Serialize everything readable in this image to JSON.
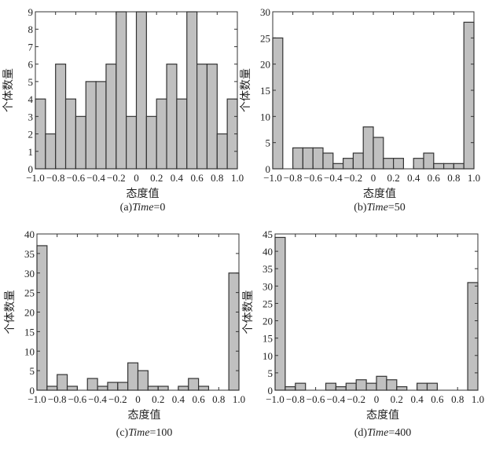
{
  "chart_data": [
    {
      "type": "bar",
      "caption_prefix": "(a)",
      "caption_var": "Time",
      "caption_value": "=0",
      "xlabel": "态度值",
      "ylabel": "个体数量",
      "bin_edges_start": -1.0,
      "bin_width": 0.1,
      "values": [
        4,
        2,
        6,
        4,
        3,
        5,
        5,
        6,
        9,
        3,
        9,
        3,
        4,
        6,
        4,
        9,
        6,
        6,
        2,
        4
      ],
      "xlim": [
        -1.0,
        1.0
      ],
      "ylim": [
        0,
        9
      ],
      "xticks": [
        "-1.0",
        "-0.8",
        "-0.6",
        "-0.4",
        "-0.2",
        "0",
        "0.2",
        "0.4",
        "0.6",
        "0.8",
        "1.0"
      ],
      "yticks": [
        0,
        1,
        2,
        3,
        4,
        5,
        6,
        7,
        8,
        9
      ]
    },
    {
      "type": "bar",
      "caption_prefix": "(b)",
      "caption_var": "Time",
      "caption_value": "=50",
      "xlabel": "态度值",
      "ylabel": "个体数量",
      "bin_edges_start": -1.0,
      "bin_width": 0.1,
      "values": [
        25,
        0,
        4,
        4,
        4,
        3,
        1,
        2,
        3,
        8,
        6,
        2,
        2,
        0,
        2,
        3,
        1,
        1,
        1,
        28
      ],
      "xlim": [
        -1.0,
        1.0
      ],
      "ylim": [
        0,
        30
      ],
      "xticks": [
        "-1.0",
        "-0.8",
        "-0.6",
        "-0.4",
        "-0.2",
        "0",
        "0.2",
        "0.4",
        "0.6",
        "0.8",
        "1.0"
      ],
      "yticks": [
        0,
        5,
        10,
        15,
        20,
        25,
        30
      ]
    },
    {
      "type": "bar",
      "caption_prefix": "(c)",
      "caption_var": "Time",
      "caption_value": "=100",
      "xlabel": "态度值",
      "ylabel": "个体数量",
      "bin_edges_start": -1.0,
      "bin_width": 0.1,
      "values": [
        37,
        1,
        4,
        1,
        0,
        3,
        1,
        2,
        2,
        7,
        5,
        1,
        1,
        0,
        1,
        3,
        1,
        0,
        0,
        30
      ],
      "xlim": [
        -1.0,
        1.0
      ],
      "ylim": [
        0,
        40
      ],
      "xticks": [
        "-1.0",
        "-0.8",
        "-0.6",
        "-0.4",
        "-0.2",
        "0",
        "0.2",
        "0.4",
        "0.6",
        "0.8",
        "1.0"
      ],
      "yticks": [
        0,
        5,
        10,
        15,
        20,
        25,
        30,
        35,
        40
      ]
    },
    {
      "type": "bar",
      "caption_prefix": "(d)",
      "caption_var": "Time",
      "caption_value": "=400",
      "xlabel": "态度值",
      "ylabel": "个体数量",
      "bin_edges_start": -1.0,
      "bin_width": 0.1,
      "values": [
        44,
        1,
        2,
        0,
        0,
        2,
        1,
        2,
        3,
        2,
        4,
        3,
        1,
        0,
        2,
        2,
        0,
        0,
        0,
        31
      ],
      "xlim": [
        -1.0,
        1.0
      ],
      "ylim": [
        0,
        45
      ],
      "xticks": [
        "-1.0",
        "-0.8",
        "-0.6",
        "-0.4",
        "-0.2",
        "0",
        "0.2",
        "0.4",
        "0.6",
        "0.8",
        "1.0"
      ],
      "yticks": [
        0,
        5,
        10,
        15,
        20,
        25,
        30,
        35,
        40,
        45
      ]
    }
  ],
  "colors": {
    "bar_fill": "#c0c0c0",
    "bar_stroke": "#333333",
    "axis": "#333333"
  }
}
